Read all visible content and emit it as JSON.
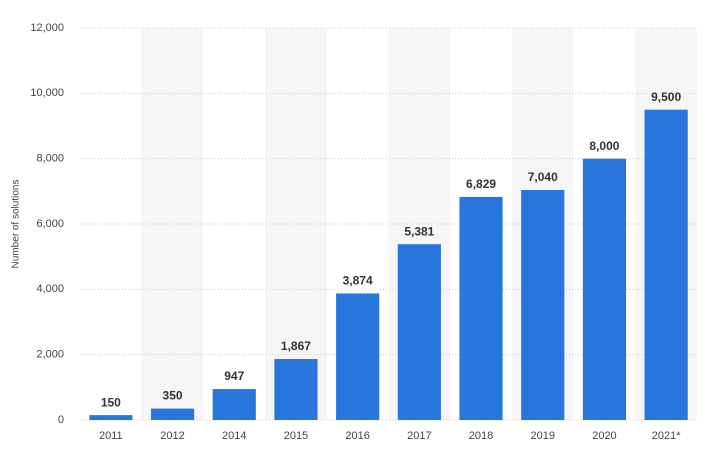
{
  "chart_data": {
    "type": "bar",
    "y_label": "Number of solutions",
    "categories": [
      "2011",
      "2012",
      "2014",
      "2015",
      "2016",
      "2017",
      "2018",
      "2019",
      "2020",
      "2021*"
    ],
    "values": [
      150,
      350,
      947,
      1867,
      3874,
      5381,
      6829,
      7040,
      8000,
      9500
    ],
    "value_labels": [
      "150",
      "350",
      "947",
      "1,867",
      "3,874",
      "5,381",
      "6,829",
      "7,040",
      "8,000",
      "9,500"
    ],
    "color": "#2876dd",
    "ylim": [
      0,
      12000
    ],
    "yticks": [
      0,
      {
        "value": 2000,
        "label": "2,000"
      },
      {
        "value": 4000,
        "label": "4,000"
      },
      {
        "value": 6000,
        "label": "6,000"
      },
      {
        "value": 8000,
        "label": "8,000"
      },
      {
        "value": 10000,
        "label": "10,000"
      },
      {
        "value": 12000,
        "label": "12,000"
      }
    ],
    "grid": true
  }
}
